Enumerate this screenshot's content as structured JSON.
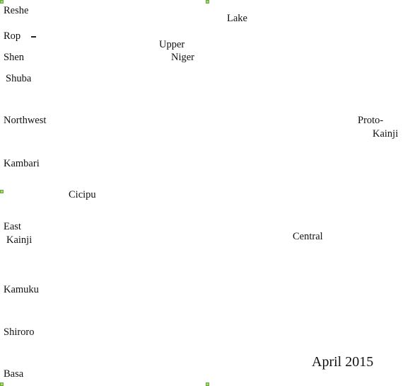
{
  "labels": {
    "reshe": "Reshe",
    "rop": "Rop",
    "shen": "Shen",
    "shuba": "Shuba",
    "northwest": "Northwest",
    "kambari": "Kambari",
    "cicipu": "Cicipu",
    "east_kainji": [
      "East",
      "Kainji"
    ],
    "kamuku": "Kamuku",
    "shiroro": "Shiroro",
    "basa": "Basa",
    "lake": "Lake",
    "upper_niger": [
      "Upper",
      "Niger"
    ],
    "proto_kainji": [
      "Proto-",
      "Kainji"
    ],
    "central": "Central"
  },
  "date": "April 2015",
  "colors": {
    "handle": "#9dd86a",
    "text": "#111111"
  }
}
